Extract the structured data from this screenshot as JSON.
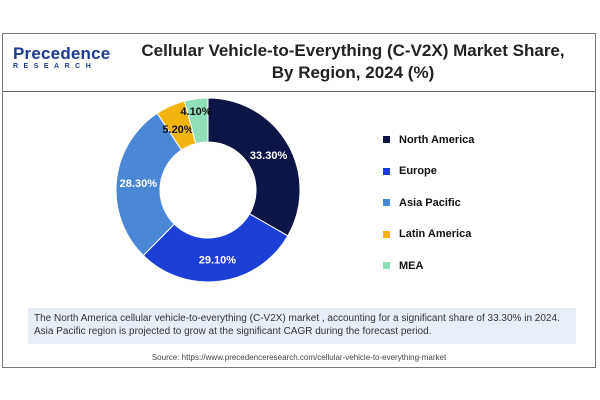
{
  "logo": {
    "line1": "Precedence",
    "line2": "RESEARCH"
  },
  "chart_data": {
    "type": "pie",
    "title": "Cellular Vehicle-to-Everything (C-V2X) Market Share, By Region, 2024 (%)",
    "donut": true,
    "categories": [
      "North America",
      "Europe",
      "Asia Pacific",
      "Latin America",
      "MEA"
    ],
    "values": [
      33.3,
      29.1,
      28.3,
      5.2,
      4.1
    ],
    "labels": [
      "33.30%",
      "29.10%",
      "28.30%",
      "5.20%",
      "4.10%"
    ],
    "colors": [
      "#0d1446",
      "#1b3fd4",
      "#4a88d6",
      "#f2b50f",
      "#8fe0b8"
    ],
    "legend_position": "right"
  },
  "caption": "The North America cellular vehicle-to-everything (C-V2X) market , accounting for a significant share of 33.30% in 2024. Asia Pacific region is projected to grow at the significant CAGR during the forecast period.",
  "source": "Source: https://www.precedenceresearch.com/cellular-vehicle-to-everything-market"
}
